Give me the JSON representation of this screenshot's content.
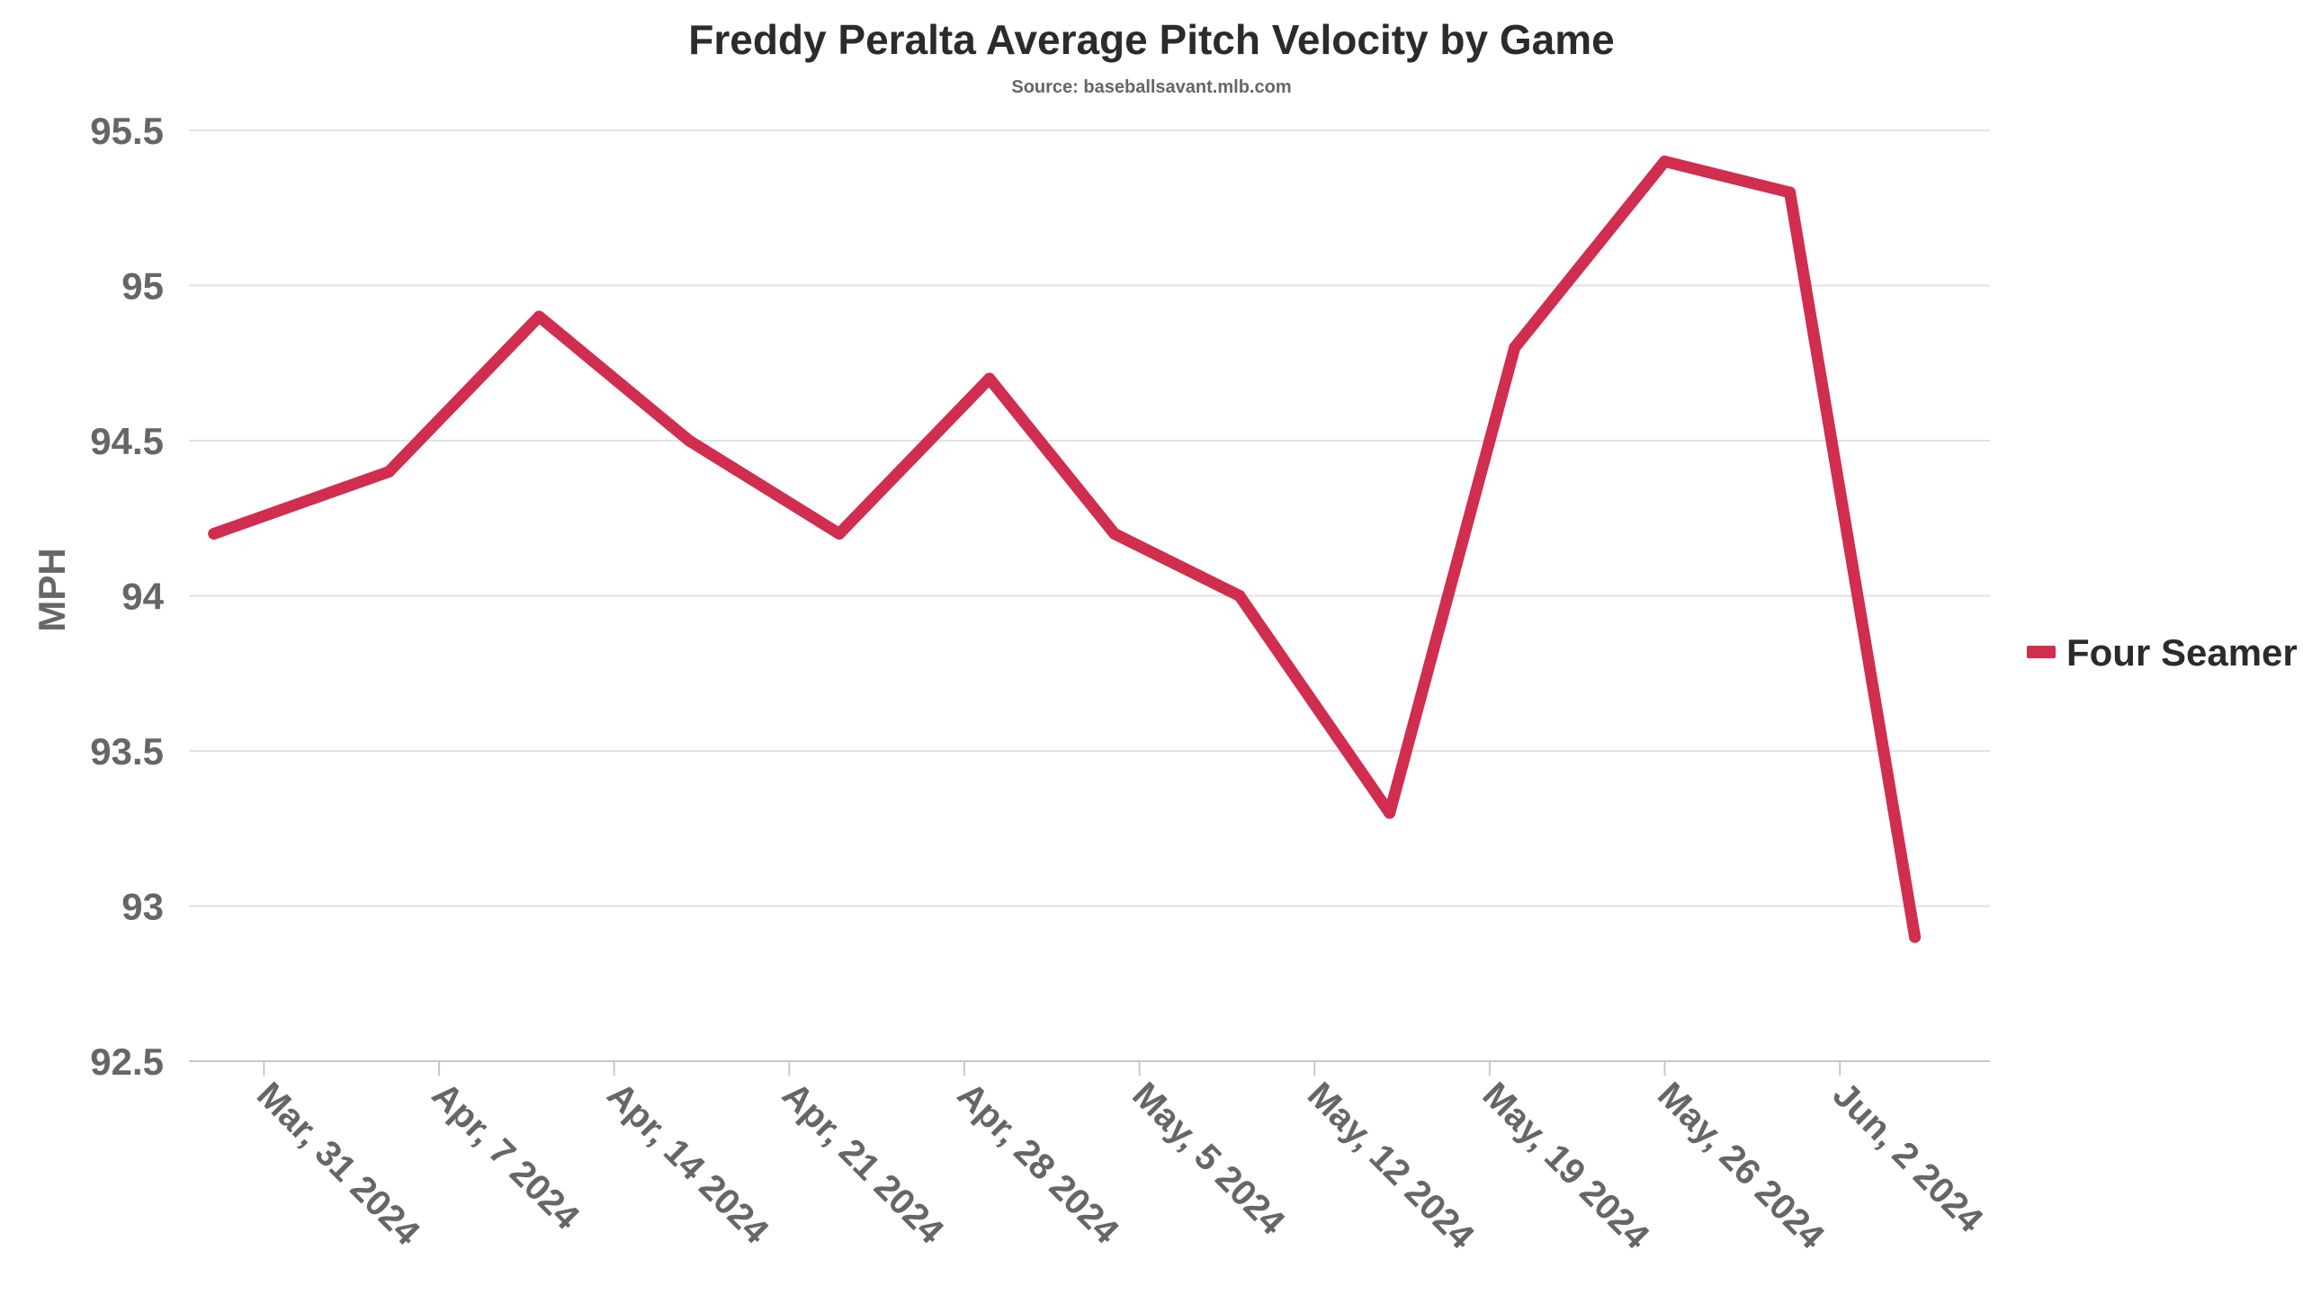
{
  "chart_data": {
    "type": "line",
    "title": "Freddy Peralta Average Pitch Velocity by Game",
    "subtitle": "Source: baseballsavant.mlb.com",
    "xlabel": "",
    "ylabel": "MPH",
    "ylim": [
      92.5,
      95.5
    ],
    "yticks": [
      92.5,
      93,
      93.5,
      94,
      94.5,
      95,
      95.5
    ],
    "ytick_labels": [
      "92.5",
      "93",
      "93.5",
      "94",
      "94.5",
      "95",
      "95.5"
    ],
    "xlim": [
      "2024-03-28",
      "2024-06-08"
    ],
    "xticks": [
      "2024-03-31",
      "2024-04-07",
      "2024-04-14",
      "2024-04-21",
      "2024-04-28",
      "2024-05-05",
      "2024-05-12",
      "2024-05-19",
      "2024-05-26",
      "2024-06-02"
    ],
    "xtick_labels": [
      "Mar, 31 2024",
      "Apr, 7 2024",
      "Apr, 14 2024",
      "Apr, 21 2024",
      "Apr, 28 2024",
      "May, 5 2024",
      "May, 12 2024",
      "May, 19 2024",
      "May, 26 2024",
      "Jun, 2 2024"
    ],
    "grid": true,
    "legend_position": "right",
    "series": [
      {
        "name": "Four Seamer",
        "color": "#d12d4e",
        "x": [
          "2024-03-29",
          "2024-04-05",
          "2024-04-11",
          "2024-04-17",
          "2024-04-23",
          "2024-04-29",
          "2024-05-04",
          "2024-05-09",
          "2024-05-15",
          "2024-05-20",
          "2024-05-26",
          "2024-05-31",
          "2024-06-05"
        ],
        "y": [
          94.2,
          94.4,
          94.9,
          94.5,
          94.2,
          94.7,
          94.2,
          94.0,
          93.3,
          94.8,
          95.4,
          95.3,
          92.9
        ]
      }
    ]
  }
}
